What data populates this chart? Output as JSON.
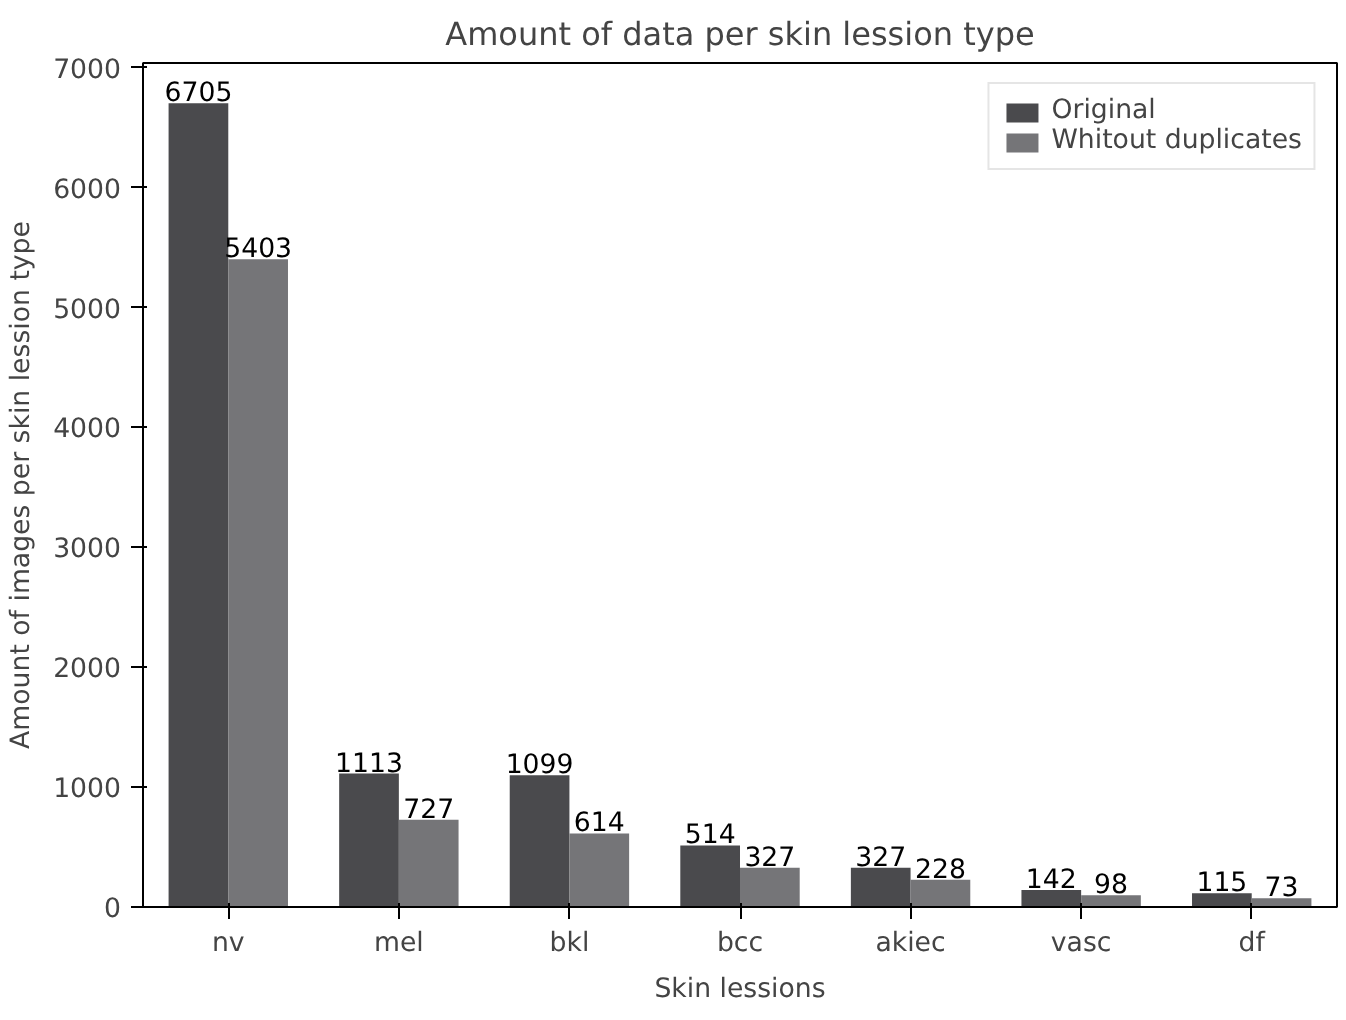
{
  "chart_data": {
    "type": "bar",
    "title": "Amount of data per skin lession type",
    "xlabel": "Skin lessions",
    "ylabel": "Amount of images per skin lession type",
    "categories": [
      "nv",
      "mel",
      "bkl",
      "bcc",
      "akiec",
      "vasc",
      "df"
    ],
    "series": [
      {
        "name": "Original",
        "color": "#4a4a4d",
        "values": [
          6705,
          1113,
          1099,
          514,
          327,
          142,
          115
        ]
      },
      {
        "name": "Whitout duplicates",
        "color": "#757578",
        "values": [
          5403,
          727,
          614,
          327,
          228,
          98,
          73
        ]
      }
    ],
    "ylim": [
      0,
      7040
    ],
    "yticks": [
      0,
      1000,
      2000,
      3000,
      4000,
      5000,
      6000,
      7000
    ],
    "data_labels": true,
    "legend": "top right",
    "grid": false
  }
}
